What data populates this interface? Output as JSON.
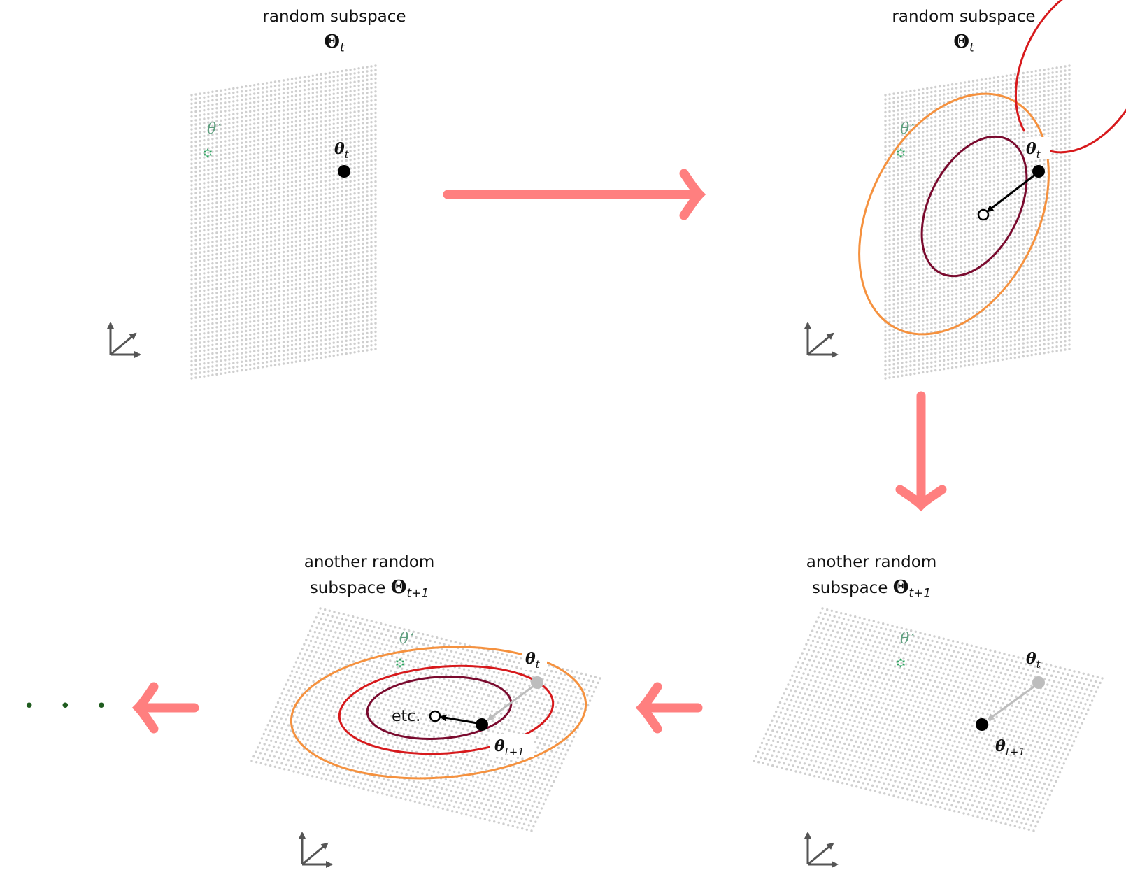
{
  "titles": {
    "panel1_line1": "random subspace",
    "panel1_symbol": "Θ",
    "panel1_sub": "t",
    "panel2_line1": "random subspace",
    "panel2_symbol": "Θ",
    "panel2_sub": "t",
    "panel3_line1": "another random",
    "panel3_line2_prefix": "subspace",
    "panel3_symbol": "Θ",
    "panel3_sub": "t+1",
    "panel4_line1": "another random",
    "panel4_line2_prefix": "subspace",
    "panel4_symbol": "Θ",
    "panel4_sub": "t+1"
  },
  "labels": {
    "theta_star": "θ",
    "theta_star_sup": "⋆",
    "theta": "θ",
    "sub_t": "t",
    "sub_t1": "t+1",
    "etc": "etc."
  },
  "ellipsis": "• • •",
  "colors": {
    "grid_dot": "#cfcfcf",
    "flow_arrow": "#ff7f7f",
    "contour_outer": "#f5913e",
    "contour_mid": "#d7191c",
    "contour_inner": "#7a0a2e",
    "optimum_star": "#2ca25f",
    "optimum_label": "#5f9f7f",
    "axis_icon": "#555555",
    "ghost_point": "#bdbdbd",
    "ellipsis_dots": "#1f5c1f"
  },
  "icons": {
    "optimum": "star-of-david-icon",
    "axes": "3d-axes-icon"
  }
}
